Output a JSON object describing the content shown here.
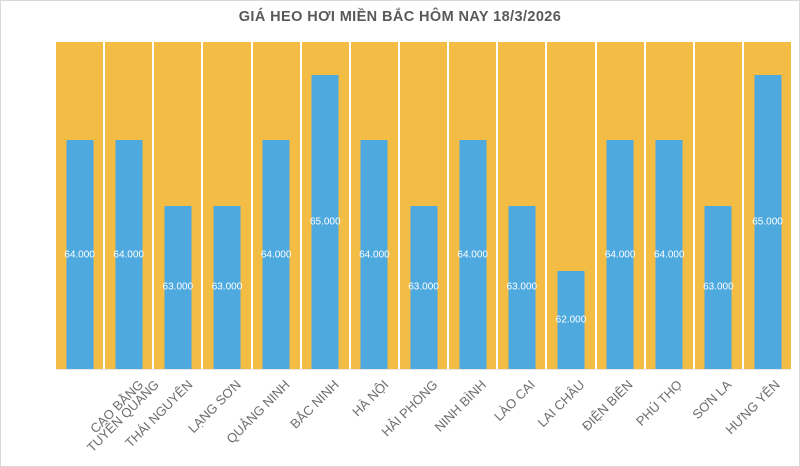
{
  "chart_data": {
    "type": "bar",
    "title": "GIÁ HEO HƠI MIỀN BẮC HÔM NAY 18/3/2026",
    "categories": [
      "TUYÊN QUANG",
      "CAO BẰNG",
      "THÁI NGUYÊN",
      "LẠNG SƠN",
      "QUẢNG NINH",
      "BẮC NINH",
      "HÀ NỘI",
      "HẢI PHÒNG",
      "NINH BÌNH",
      "LÀO CAI",
      "LAI CHÂU",
      "ĐIỆN BIÊN",
      "PHÚ THỌ",
      "SƠN LA",
      "HƯNG YÊN"
    ],
    "values": [
      64000,
      64000,
      63000,
      63000,
      64000,
      65000,
      64000,
      63000,
      64000,
      63000,
      62000,
      64000,
      64000,
      63000,
      65000
    ],
    "value_labels": [
      "64.000",
      "64.000",
      "63.000",
      "63.000",
      "64.000",
      "65.000",
      "64.000",
      "63.000",
      "64.000",
      "63.000",
      "62.000",
      "64.000",
      "64.000",
      "63.000",
      "65.000"
    ],
    "xlabel": "",
    "ylabel": "",
    "ylim": [
      60500,
      65500
    ],
    "legend": "none",
    "grid": "white vertical separators between category bands",
    "colors": {
      "bar": "#4ea9df",
      "column_band_background": "#f3bc44",
      "value_label": "#ffffff",
      "category_label": "#6e6e6e",
      "title": "#595959",
      "frame_border": "#d9d9d9",
      "chart_background": "#ffffff"
    }
  }
}
